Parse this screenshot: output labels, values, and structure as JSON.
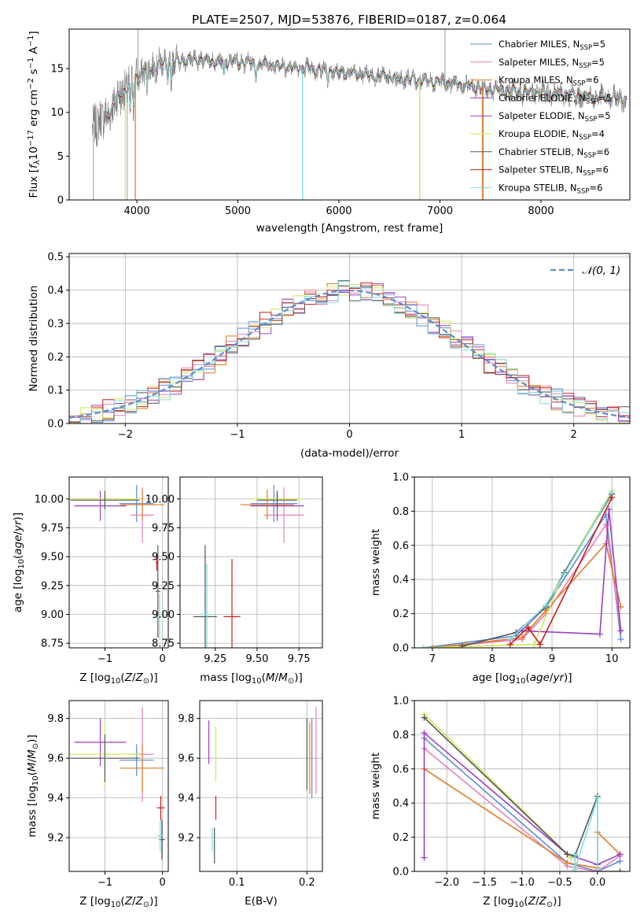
{
  "title": "PLATE=2507, MJD=53876, FIBERID=0187, z=0.064",
  "colors": {
    "Chabrier MILES": "#5b8bd6",
    "Salpeter MILES": "#e87fbf",
    "Kroupa MILES": "#e07b25",
    "Chabrier ELODIE": "#9b3fc0",
    "Salpeter ELODIE": "#9b3fc0",
    "Kroupa ELODIE": "#cde85a",
    "Chabrier STELIB": "#555555",
    "Salpeter STELIB": "#c4201c",
    "Kroupa STELIB": "#7fdbe0",
    "data": "#808080",
    "normal": "#5b8bd6"
  },
  "chart_data": [
    {
      "id": "spectrum",
      "type": "line",
      "xlabel": "wavelength [Angstrom, rest frame]",
      "ylabel": "Flux [fλ10⁻¹⁷ erg cm⁻² s⁻¹ A⁻¹]",
      "xlim": [
        3330,
        8880
      ],
      "ylim": [
        0,
        19.5
      ],
      "xticks": [
        4000,
        5000,
        6000,
        7000,
        8000
      ],
      "yticks": [
        0,
        5,
        10,
        15
      ],
      "grid": false,
      "legend_position": "top-right",
      "legend": [
        {
          "model": "Chabrier MILES",
          "nssp": "5"
        },
        {
          "model": "Salpeter MILES",
          "nssp": "5"
        },
        {
          "model": "Kroupa MILES",
          "nssp": "6"
        },
        {
          "model": "Chabrier ELODIE",
          "nssp": "5"
        },
        {
          "model": "Salpeter ELODIE",
          "nssp": "5"
        },
        {
          "model": "Kroupa ELODIE",
          "nssp": "4"
        },
        {
          "model": "Chabrier STELIB",
          "nssp": "6"
        },
        {
          "model": "Salpeter STELIB",
          "nssp": "6"
        },
        {
          "model": "Kroupa STELIB",
          "nssp": "6"
        }
      ],
      "continuum": {
        "x": [
          3560,
          3700,
          3800,
          3950,
          4100,
          4300,
          4600,
          5000,
          5500,
          6000,
          6500,
          7000,
          7500,
          8000,
          8500,
          8850
        ],
        "y": [
          8.5,
          9.5,
          11.5,
          13.5,
          15.0,
          15.8,
          16.0,
          15.8,
          15.2,
          14.6,
          14.0,
          13.5,
          12.6,
          12.2,
          11.8,
          11.5
        ]
      }
    },
    {
      "id": "residuals",
      "type": "histogram",
      "xlabel": "(data-model)/error",
      "ylabel": "Normed distribution",
      "xlim": [
        -2.5,
        2.5
      ],
      "ylim": [
        0,
        0.51
      ],
      "xticks": [
        -2,
        -1,
        0,
        1,
        2
      ],
      "yticks": [
        0.0,
        0.1,
        0.2,
        0.3,
        0.4,
        0.5
      ],
      "grid": true,
      "legend": "𝒩(0, 1)",
      "bin_width": 0.1
    },
    {
      "id": "age-vs-Z",
      "type": "errorbar",
      "xlabel": "Z [log10(Z/Z⊙)]",
      "ylabel": "age  [log10(age/yr)]",
      "xlim": [
        -1.62,
        0.1
      ],
      "ylim": [
        8.71,
        10.19
      ],
      "xticks": [
        -1,
        0
      ],
      "yticks": [
        8.75,
        9.0,
        9.25,
        9.5,
        9.75,
        10.0
      ],
      "grid": true,
      "points": [
        {
          "model": "Chabrier MILES",
          "x": -0.45,
          "xerr": 0.3,
          "y": 9.96,
          "yerr": 0.16
        },
        {
          "model": "Salpeter MILES",
          "x": -0.35,
          "xerr": 0.2,
          "y": 9.86,
          "yerr": 0.24
        },
        {
          "model": "Kroupa MILES",
          "x": -0.35,
          "xerr": 0.38,
          "y": 9.95,
          "yerr": 0.13
        },
        {
          "model": "Chabrier ELODIE",
          "x": -1.08,
          "xerr": 0.45,
          "y": 9.94,
          "yerr": 0.13
        },
        {
          "model": "Kroupa ELODIE",
          "x": -1.0,
          "xerr": 0.6,
          "y": 10.0,
          "yerr": 0.06
        },
        {
          "model": "Chabrier STELIB",
          "x": -1.0,
          "xerr": 0.6,
          "y": 9.99,
          "yerr": 0.08
        },
        {
          "model": "Salpeter STELIB",
          "x": -0.1,
          "xerr": 0.02,
          "y": 9.45,
          "yerr": 0.07
        },
        {
          "model": "Chabrier STELIB",
          "x": -0.08,
          "xerr": 0.04,
          "y": 9.2,
          "yerr": 0.4
        },
        {
          "model": "Kroupa STELIB",
          "x": -0.05,
          "xerr": 0.08,
          "y": 8.98,
          "yerr": 0.2
        }
      ]
    },
    {
      "id": "age-vs-mass",
      "type": "errorbar",
      "xlabel": "mass [log10(M/M⊙)]",
      "ylabel": "",
      "xlim": [
        9.04,
        9.89
      ],
      "ylim": [
        8.71,
        10.19
      ],
      "xticks": [
        9.25,
        9.5,
        9.75
      ],
      "yticks": [
        8.75,
        9.0,
        9.25,
        9.5,
        9.75,
        10.0
      ],
      "grid": true,
      "points": [
        {
          "model": "Chabrier MILES",
          "x": 9.6,
          "xerr": 0.14,
          "y": 9.96,
          "yerr": 0.16
        },
        {
          "model": "Salpeter MILES",
          "x": 9.66,
          "xerr": 0.12,
          "y": 9.86,
          "yerr": 0.24
        },
        {
          "model": "Kroupa MILES",
          "x": 9.56,
          "xerr": 0.16,
          "y": 9.95,
          "yerr": 0.13
        },
        {
          "model": "Chabrier ELODIE",
          "x": 9.62,
          "xerr": 0.16,
          "y": 9.94,
          "yerr": 0.13
        },
        {
          "model": "Kroupa ELODIE",
          "x": 9.62,
          "xerr": 0.16,
          "y": 10.0,
          "yerr": 0.06
        },
        {
          "model": "Chabrier STELIB",
          "x": 9.62,
          "xerr": 0.12,
          "y": 9.99,
          "yerr": 0.08
        },
        {
          "model": "Salpeter STELIB",
          "x": 9.35,
          "xerr": 0.05,
          "y": 8.98,
          "yerr": 0.5
        },
        {
          "model": "Chabrier STELIB",
          "x": 9.19,
          "xerr": 0.07,
          "y": 8.98,
          "yerr": 0.62
        },
        {
          "model": "Kroupa STELIB",
          "x": 9.2,
          "xerr": 0.03,
          "y": 9.0,
          "yerr": 0.44
        }
      ]
    },
    {
      "id": "massweight-vs-age",
      "type": "line",
      "xlabel": "age  [log10(age/yr)]",
      "ylabel": "mass weight",
      "xlim": [
        6.7,
        10.3
      ],
      "ylim": [
        0,
        1.0
      ],
      "xticks": [
        7,
        8,
        9,
        10
      ],
      "yticks": [
        0.0,
        0.2,
        0.4,
        0.6,
        0.8,
        1.0
      ],
      "grid": true,
      "series": [
        {
          "model": "Chabrier MILES",
          "x": [
            6.85,
            8.4,
            8.9,
            9.9,
            10.15
          ],
          "y": [
            0.0,
            0.07,
            0.24,
            0.78,
            0.05
          ]
        },
        {
          "model": "Salpeter MILES",
          "x": [
            7.0,
            8.5,
            8.9,
            9.9,
            10.15
          ],
          "y": [
            0.0,
            0.05,
            0.2,
            0.72,
            0.1
          ]
        },
        {
          "model": "Kroupa MILES",
          "x": [
            7.0,
            8.5,
            8.9,
            9.9,
            10.15
          ],
          "y": [
            0.0,
            0.06,
            0.22,
            0.61,
            0.24
          ]
        },
        {
          "model": "Salpeter ELODIE",
          "x": [
            8.5,
            9.8,
            9.95,
            10.15
          ],
          "y": [
            0.1,
            0.08,
            0.81,
            0.1
          ]
        },
        {
          "model": "Kroupa ELODIE",
          "x": [
            6.85,
            8.7,
            9.2,
            10.0
          ],
          "y": [
            0.0,
            0.02,
            0.44,
            0.92
          ]
        },
        {
          "model": "Chabrier STELIB",
          "x": [
            7.5,
            8.4,
            8.9,
            9.2,
            10.0
          ],
          "y": [
            0.01,
            0.09,
            0.24,
            0.44,
            0.9
          ]
        },
        {
          "model": "Kroupa STELIB",
          "x": [
            8.3,
            8.9,
            9.2,
            10.0
          ],
          "y": [
            0.05,
            0.25,
            0.43,
            0.91
          ]
        },
        {
          "model": "Salpeter STELIB",
          "x": [
            8.3,
            8.6,
            8.8,
            10.0
          ],
          "y": [
            0.02,
            0.12,
            0.02,
            0.88
          ]
        }
      ]
    },
    {
      "id": "mass-vs-Z",
      "type": "errorbar",
      "xlabel": "Z [log10(Z/Z⊙)]",
      "ylabel": "mass [log10(M/M⊙)]",
      "xlim": [
        -1.62,
        0.1
      ],
      "ylim": [
        9.03,
        9.89
      ],
      "xticks": [
        -1,
        0
      ],
      "yticks": [
        9.2,
        9.4,
        9.6,
        9.8
      ],
      "grid": true,
      "points": [
        {
          "model": "Chabrier MILES",
          "x": -0.45,
          "xerr": 0.3,
          "y": 9.59,
          "yerr": 0.08
        },
        {
          "model": "Salpeter MILES",
          "x": -0.35,
          "xerr": 0.2,
          "y": 9.62,
          "yerr": 0.24
        },
        {
          "model": "Kroupa MILES",
          "x": -0.35,
          "xerr": 0.38,
          "y": 9.55,
          "yerr": 0.12
        },
        {
          "model": "Chabrier ELODIE",
          "x": -1.08,
          "xerr": 0.45,
          "y": 9.68,
          "yerr": 0.12
        },
        {
          "model": "Kroupa ELODIE",
          "x": -1.0,
          "xerr": 0.6,
          "y": 9.62,
          "yerr": 0.16
        },
        {
          "model": "Chabrier STELIB",
          "x": -1.0,
          "xerr": 0.6,
          "y": 9.6,
          "yerr": 0.12
        },
        {
          "model": "Salpeter STELIB",
          "x": -0.03,
          "xerr": 0.07,
          "y": 9.35,
          "yerr": 0.06
        },
        {
          "model": "Chabrier STELIB",
          "x": -0.01,
          "xerr": 0.05,
          "y": 9.19,
          "yerr": 0.1
        },
        {
          "model": "Kroupa STELIB",
          "x": -0.04,
          "xerr": 0.05,
          "y": 9.21,
          "yerr": 0.08
        }
      ]
    },
    {
      "id": "mass-vs-EBV",
      "type": "errorbar",
      "xlabel": "E(B-V)",
      "ylabel": "",
      "xlim": [
        0.047,
        0.222
      ],
      "ylim": [
        9.03,
        9.89
      ],
      "xticks": [
        0.1,
        0.2
      ],
      "yticks": [
        9.2,
        9.4,
        9.6,
        9.8
      ],
      "grid": true,
      "points": [
        {
          "model": "Chabrier ELODIE",
          "x": 0.06,
          "y": 9.68,
          "yerr": 0.11
        },
        {
          "model": "Kroupa ELODIE",
          "x": 0.07,
          "y": 9.62,
          "yerr": 0.14
        },
        {
          "model": "Salpeter STELIB",
          "x": 0.07,
          "y": 9.35,
          "yerr": 0.06
        },
        {
          "model": "Chabrier STELIB",
          "x": 0.068,
          "y": 9.16,
          "yerr": 0.09
        },
        {
          "model": "Kroupa STELIB",
          "x": 0.065,
          "y": 9.19,
          "yerr": 0.06
        },
        {
          "model": "Kroupa MILES",
          "x": 0.204,
          "y": 9.6,
          "yerr": 0.18
        },
        {
          "model": "Chabrier MILES",
          "x": 0.207,
          "y": 9.6,
          "yerr": 0.2
        },
        {
          "model": "Salpeter MILES",
          "x": 0.213,
          "y": 9.64,
          "yerr": 0.22
        },
        {
          "model": "Chabrier STELIB",
          "x": 0.2,
          "y": 9.62,
          "yerr": 0.18
        }
      ]
    },
    {
      "id": "massweight-vs-Z",
      "type": "line",
      "xlabel": "Z [log10(Z/Z⊙)]",
      "ylabel": "mass weight",
      "xlim": [
        -2.43,
        0.43
      ],
      "ylim": [
        0,
        1.0
      ],
      "xticks": [
        -2.0,
        -1.5,
        -1.0,
        -0.5,
        0.0
      ],
      "yticks": [
        0.0,
        0.2,
        0.4,
        0.6,
        0.8,
        1.0
      ],
      "grid": true,
      "series": [
        {
          "model": "Chabrier MILES",
          "x": [
            -2.3,
            -0.4,
            0.0,
            0.3
          ],
          "y": [
            0.78,
            0.05,
            0.0,
            0.06
          ]
        },
        {
          "model": "Salpeter MILES",
          "x": [
            -2.3,
            -0.4,
            0.0,
            0.3
          ],
          "y": [
            0.72,
            0.03,
            0.0,
            0.09
          ]
        },
        {
          "model": "Kroupa MILES",
          "x": [
            -2.3,
            -0.4,
            0.0,
            0.0,
            0.3
          ],
          "y": [
            0.6,
            0.05,
            0.02,
            0.23,
            0.1
          ]
        },
        {
          "model": "Salpeter ELODIE",
          "x": [
            -2.3,
            -2.3,
            -0.4,
            0.0,
            0.3
          ],
          "y": [
            0.08,
            0.81,
            0.1,
            0.04,
            0.1
          ]
        },
        {
          "model": "Kroupa ELODIE",
          "x": [
            -2.3,
            -0.35
          ],
          "y": [
            0.92,
            0.08
          ]
        },
        {
          "model": "Chabrier STELIB",
          "x": [
            -2.3,
            -0.4,
            -0.3,
            0.0,
            0.0,
            0.3
          ],
          "y": [
            0.9,
            0.1,
            0.09,
            0.44,
            0.0,
            0.0
          ]
        },
        {
          "model": "Kroupa STELIB",
          "x": [
            -0.3,
            -0.3,
            0.0,
            0.0
          ],
          "y": [
            0.1,
            0.01,
            0.43,
            0.01
          ]
        }
      ]
    }
  ]
}
